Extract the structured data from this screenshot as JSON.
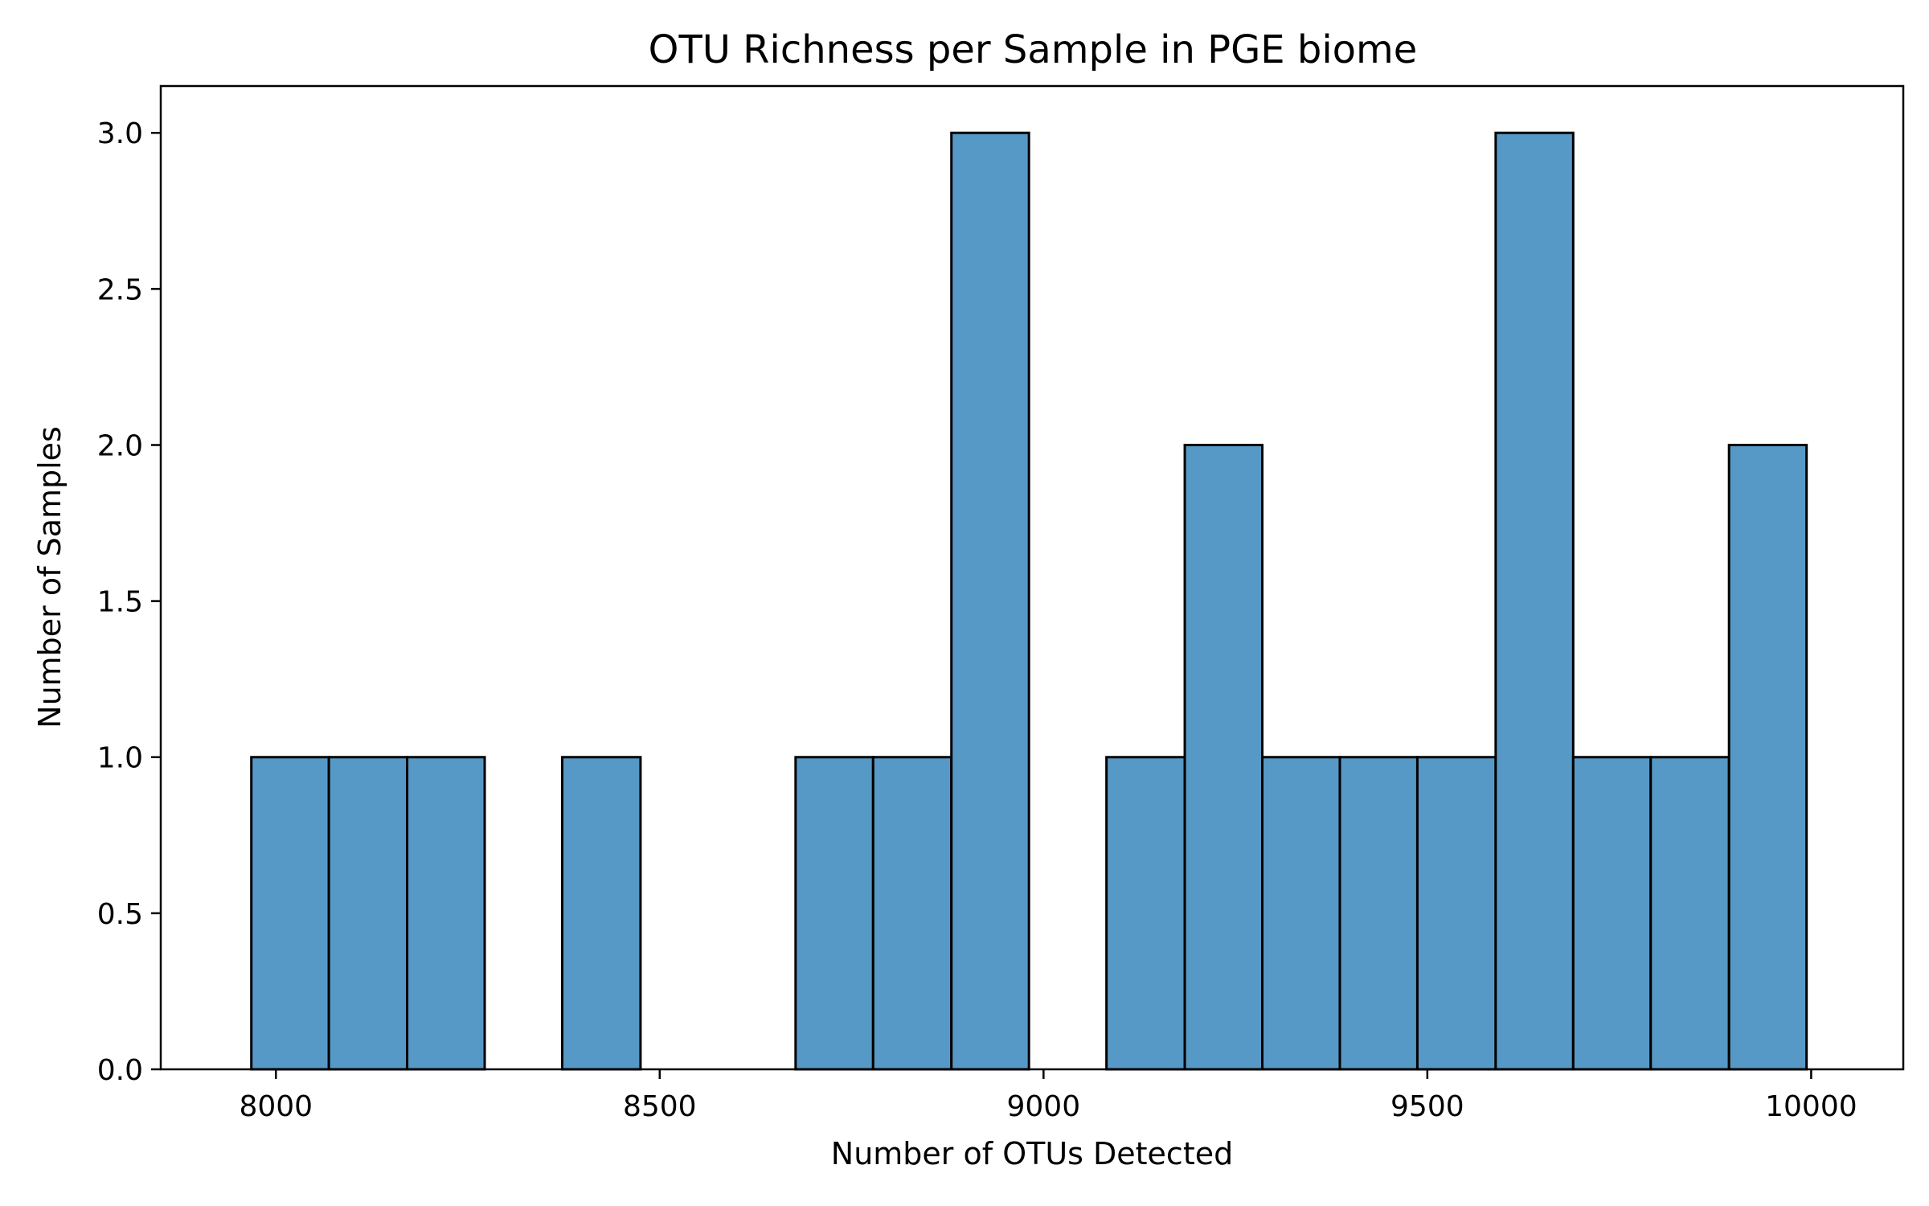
{
  "chart_data": {
    "type": "bar",
    "title": "OTU Richness per Sample in PGE biome",
    "xlabel": "Number of OTUs Detected",
    "ylabel": "Number of Samples",
    "xlim": [
      7850,
      10120
    ],
    "ylim": [
      0,
      3.15
    ],
    "x_ticks": [
      8000,
      8500,
      9000,
      9500,
      10000
    ],
    "y_ticks": [
      "0.0",
      "0.5",
      "1.0",
      "1.5",
      "2.0",
      "2.5",
      "3.0"
    ],
    "grid": false,
    "legend": "none",
    "bar_color": "#5799c6",
    "bins": [
      {
        "start": 7968,
        "end": 8069,
        "count": 1
      },
      {
        "start": 8069,
        "end": 8171,
        "count": 1
      },
      {
        "start": 8171,
        "end": 8272,
        "count": 1
      },
      {
        "start": 8272,
        "end": 8373,
        "count": 0
      },
      {
        "start": 8373,
        "end": 8475,
        "count": 1
      },
      {
        "start": 8475,
        "end": 8576,
        "count": 0
      },
      {
        "start": 8576,
        "end": 8677,
        "count": 0
      },
      {
        "start": 8677,
        "end": 8778,
        "count": 1
      },
      {
        "start": 8778,
        "end": 8880,
        "count": 1
      },
      {
        "start": 8880,
        "end": 8981,
        "count": 3
      },
      {
        "start": 8981,
        "end": 9082,
        "count": 0
      },
      {
        "start": 9082,
        "end": 9184,
        "count": 1
      },
      {
        "start": 9184,
        "end": 9285,
        "count": 2
      },
      {
        "start": 9285,
        "end": 9386,
        "count": 1
      },
      {
        "start": 9386,
        "end": 9487,
        "count": 1
      },
      {
        "start": 9487,
        "end": 9589,
        "count": 1
      },
      {
        "start": 9589,
        "end": 9690,
        "count": 3
      },
      {
        "start": 9690,
        "end": 9791,
        "count": 1
      },
      {
        "start": 9791,
        "end": 9893,
        "count": 1
      },
      {
        "start": 9893,
        "end": 9994,
        "count": 2
      }
    ]
  }
}
